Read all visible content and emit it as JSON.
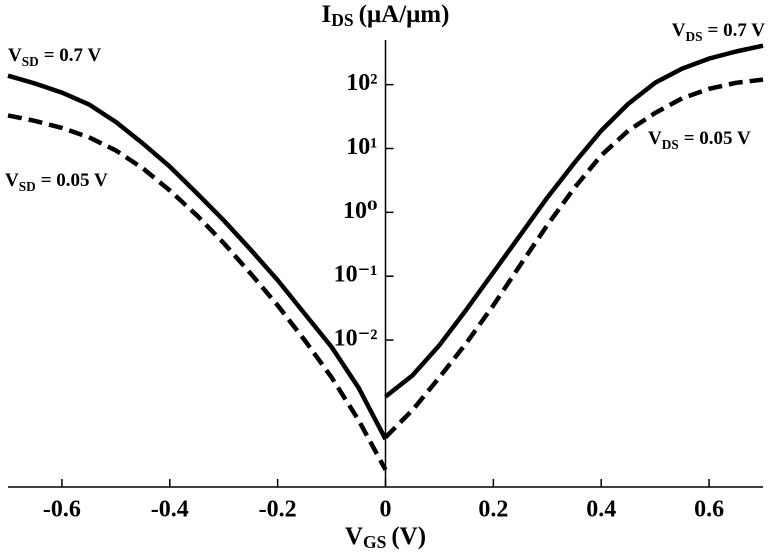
{
  "chart_data": {
    "type": "line",
    "x_label": {
      "main": "V",
      "sub": "GS",
      "rest": "(V)"
    },
    "y_label": {
      "main": "I",
      "sub": "DS",
      "rest": "(μA/μm)"
    },
    "log_y": true,
    "xlim": [
      -0.7,
      0.7
    ],
    "xticks": [
      -0.6,
      -0.4,
      -0.2,
      0,
      0.2,
      0.4,
      0.6
    ],
    "ylim": [
      5e-05,
      500
    ],
    "yticks": [
      {
        "value": 0.01,
        "label": "10⁻²"
      },
      {
        "value": 0.1,
        "label": "10⁻¹"
      },
      {
        "value": 1,
        "label": "10⁰"
      },
      {
        "value": 10,
        "label": "10¹"
      },
      {
        "value": 100,
        "label": "10²"
      }
    ],
    "series": [
      {
        "label": {
          "main": "V",
          "sub": "DS",
          "rest": "= 0.7 V"
        },
        "color": "#000000",
        "style": "solid",
        "x": [
          0,
          0.05,
          0.1,
          0.15,
          0.2,
          0.25,
          0.3,
          0.35,
          0.4,
          0.45,
          0.5,
          0.55,
          0.6,
          0.65,
          0.7
        ],
        "values": [
          0.0013,
          0.0028,
          0.0083,
          0.03,
          0.115,
          0.44,
          1.7,
          5.9,
          19,
          50,
          107,
          178,
          256,
          330,
          407
        ]
      },
      {
        "label": {
          "main": "V",
          "sub": "DS",
          "rest": "= 0.05 V"
        },
        "color": "#000000",
        "style": "dashed",
        "x": [
          0,
          0.05,
          0.1,
          0.15,
          0.2,
          0.25,
          0.3,
          0.35,
          0.4,
          0.45,
          0.5,
          0.55,
          0.6,
          0.65,
          0.7
        ],
        "values": [
          0.0003,
          0.0008,
          0.0026,
          0.009,
          0.035,
          0.15,
          0.63,
          2.4,
          7.8,
          19,
          36,
          61,
          86,
          107,
          120
        ]
      },
      {
        "label": {
          "main": "V",
          "sub": "SD",
          "rest": "= 0.7 V"
        },
        "color": "#000000",
        "style": "solid",
        "x": [
          -0.7,
          -0.65,
          -0.6,
          -0.55,
          -0.5,
          -0.45,
          -0.4,
          -0.35,
          -0.3,
          -0.25,
          -0.2,
          -0.15,
          -0.1,
          -0.05,
          0
        ],
        "values": [
          138,
          104,
          75,
          49,
          26,
          12,
          5.2,
          2.0,
          0.75,
          0.26,
          0.087,
          0.026,
          0.0078,
          0.0018,
          0.00028
        ]
      },
      {
        "label": {
          "main": "V",
          "sub": "SD",
          "rest": "= 0.05 V"
        },
        "color": "#000000",
        "style": "dashed",
        "x": [
          -0.7,
          -0.65,
          -0.6,
          -0.55,
          -0.5,
          -0.45,
          -0.4,
          -0.35,
          -0.3,
          -0.25,
          -0.2,
          -0.15,
          -0.1,
          -0.05,
          0
        ],
        "values": [
          33,
          27,
          21,
          15,
          9.3,
          4.9,
          2.2,
          0.9,
          0.33,
          0.11,
          0.035,
          0.01,
          0.0026,
          0.00056,
          9.3e-05
        ]
      }
    ]
  }
}
